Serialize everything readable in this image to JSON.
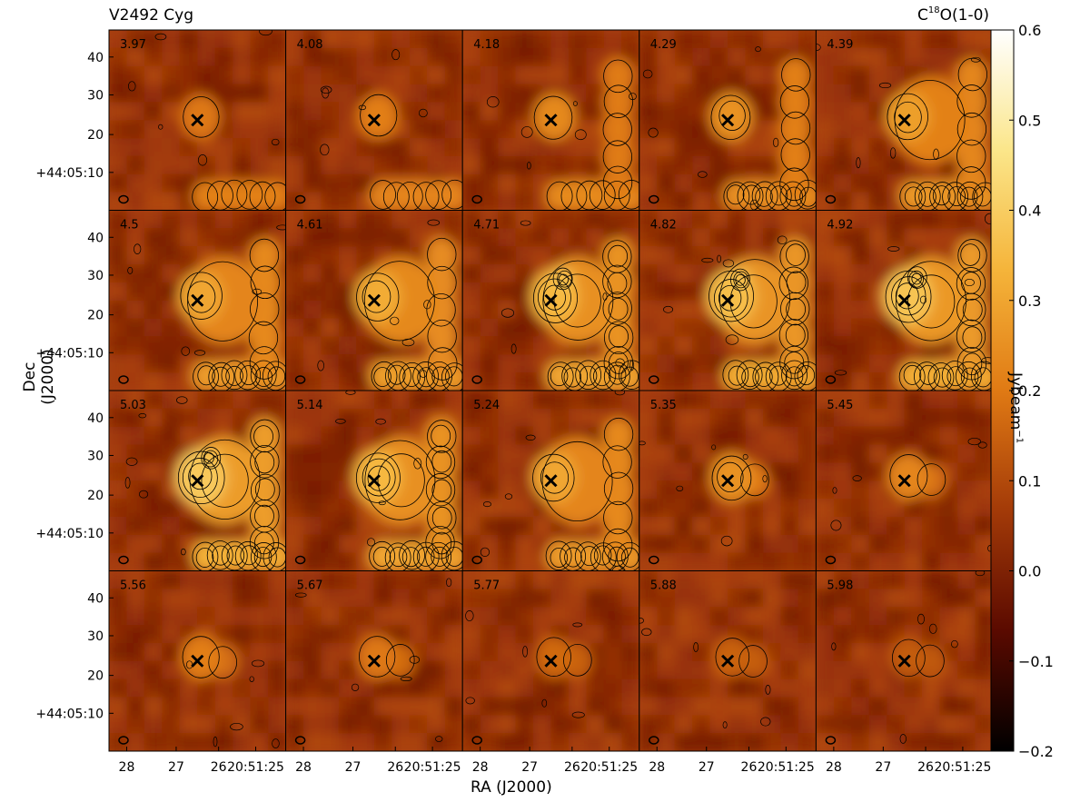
{
  "chart_data": {
    "type": "heatmap",
    "title_left": "V2492 Cyg",
    "title_right_main": "C",
    "title_right_sup": "18",
    "title_right_rest": "O(1-0)",
    "xlabel": "RA (J2000)",
    "ylabel": "Dec (J2000)",
    "colorbar_label_main": "Jybeam",
    "colorbar_label_sup": "−1",
    "colorbar_ticks": [
      "0.6",
      "0.5",
      "0.4",
      "0.3",
      "0.2",
      "0.1",
      "0.0",
      "−0.1",
      "−0.2"
    ],
    "colorbar_range": [
      -0.2,
      0.6
    ],
    "colormap": [
      "#000000",
      "#5a0a00",
      "#a33a08",
      "#e07a14",
      "#f5b43a",
      "#fbe68a",
      "#ffffff"
    ],
    "x_tick_labels": [
      "28",
      "27",
      "26",
      "20:51:25"
    ],
    "y_tick_labels": [
      "40",
      "30",
      "20",
      "+44:05:10"
    ],
    "velocity_labels": [
      "3.97",
      "4.08",
      "4.18",
      "4.29",
      "4.39",
      "4.5",
      "4.61",
      "4.71",
      "4.82",
      "4.92",
      "5.03",
      "5.14",
      "5.24",
      "5.35",
      "5.45",
      "5.56",
      "5.67",
      "5.77",
      "5.88",
      "5.98"
    ],
    "grid": {
      "rows": 4,
      "cols": 5
    },
    "source_marker": "x-marker",
    "beam_marker": "beam-ellipse"
  }
}
